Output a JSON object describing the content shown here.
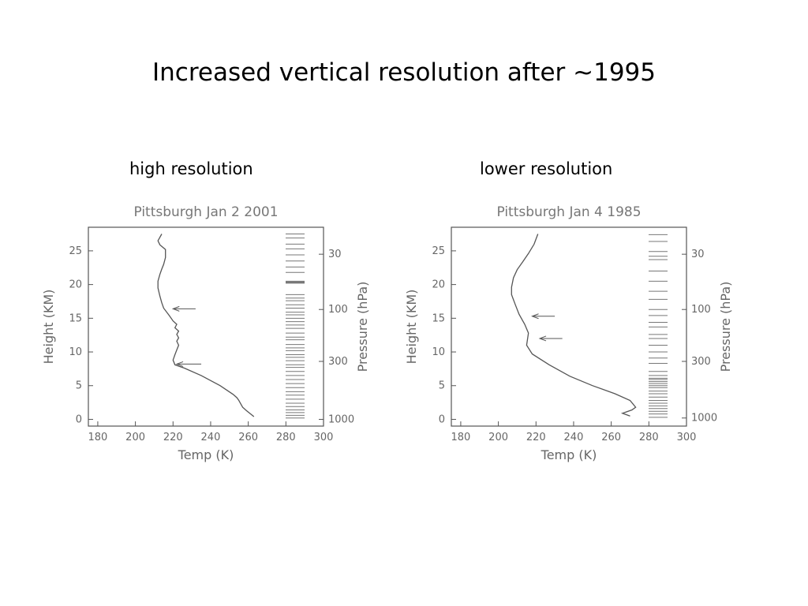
{
  "slide": {
    "title": "Increased vertical resolution after ~1995",
    "left_heading": "high resolution",
    "right_heading": "lower resolution"
  },
  "colors": {
    "profile_line": "#555555",
    "frame": "#555555",
    "text": "#666666"
  },
  "chart_data": [
    {
      "type": "line",
      "title": "Pittsburgh Jan 2 2001",
      "xlabel": "Temp (K)",
      "ylabel": "Height (KM)",
      "y2label": "Pressure (hPa)",
      "xlim": [
        175,
        300
      ],
      "ylim": [
        -1,
        28.5
      ],
      "xticks": [
        180,
        200,
        220,
        240,
        260,
        280,
        300
      ],
      "yticks": [
        0,
        5,
        10,
        15,
        20,
        25
      ],
      "y2ticks": [
        {
          "label": "30",
          "height": 24.5
        },
        {
          "label": "100",
          "height": 16.3
        },
        {
          "label": "300",
          "height": 8.6
        },
        {
          "label": "1000",
          "height": 0.0
        }
      ],
      "series": [
        {
          "x": [
            263,
            259,
            257,
            256,
            255,
            254,
            252,
            245,
            235,
            226,
            221,
            220,
            221,
            222,
            223,
            222,
            223,
            222,
            223,
            221,
            222,
            220,
            218,
            215,
            214,
            213,
            212,
            212,
            213,
            214,
            215,
            216,
            216,
            213,
            212,
            214
          ],
          "y": [
            0.4,
            1.3,
            1.8,
            2.3,
            2.8,
            3.2,
            3.7,
            5.0,
            6.5,
            7.6,
            8.1,
            8.8,
            9.6,
            10.3,
            11.0,
            11.6,
            12.1,
            12.6,
            13.1,
            13.6,
            14.1,
            14.6,
            15.4,
            16.5,
            17.3,
            18.3,
            19.5,
            20.5,
            21.5,
            22.3,
            23.0,
            24.0,
            25.2,
            25.9,
            26.5,
            27.5
          ]
        }
      ],
      "annotations": [
        {
          "type": "arrow",
          "x_start": 232,
          "x_end": 220,
          "y": 16.4
        },
        {
          "type": "arrow",
          "x_start": 235,
          "x_end": 222,
          "y": 8.2
        }
      ],
      "level_heights": [
        27.5,
        26.9,
        26.0,
        25.3,
        24.4,
        23.5,
        22.6,
        21.8,
        20.5,
        20.4,
        20.3,
        20.2,
        18.5,
        18.0,
        17.6,
        17.0,
        16.5,
        15.9,
        15.5,
        15.0,
        14.5,
        14.0,
        13.5,
        12.8,
        12.2,
        11.8,
        11.1,
        10.6,
        10.2,
        9.6,
        9.2,
        8.7,
        8.1,
        7.7,
        7.1,
        6.5,
        5.9,
        5.3,
        4.7,
        4.1,
        3.6,
        3.0,
        2.4,
        1.9,
        1.4,
        1.0,
        0.6,
        0.2
      ]
    },
    {
      "type": "line",
      "title": "Pittsburgh Jan 4 1985",
      "xlabel": "Temp (K)",
      "ylabel": "Height (KM)",
      "y2label": "Pressure (hPa)",
      "xlim": [
        175,
        300
      ],
      "ylim": [
        -1,
        28.5
      ],
      "xticks": [
        180,
        200,
        220,
        240,
        260,
        280,
        300
      ],
      "yticks": [
        0,
        5,
        10,
        15,
        20,
        25
      ],
      "y2ticks": [
        {
          "label": "30",
          "height": 24.5
        },
        {
          "label": "100",
          "height": 16.3
        },
        {
          "label": "300",
          "height": 8.6
        },
        {
          "label": "1000",
          "height": 0.2
        }
      ],
      "series": [
        {
          "x": [
            270,
            266,
            271,
            273,
            270,
            262,
            250,
            238,
            227,
            218,
            215,
            216,
            214,
            211,
            209,
            207,
            207,
            208,
            210,
            213,
            216,
            219,
            221
          ],
          "y": [
            0.5,
            0.9,
            1.4,
            1.8,
            2.8,
            3.8,
            5.0,
            6.4,
            8.1,
            9.7,
            11.0,
            12.8,
            14.1,
            15.6,
            17.0,
            18.5,
            19.6,
            21.0,
            22.2,
            23.4,
            24.6,
            26.0,
            27.5
          ]
        }
      ],
      "annotations": [
        {
          "type": "arrow",
          "x_start": 230,
          "x_end": 218,
          "y": 15.3
        },
        {
          "type": "arrow",
          "x_start": 234,
          "x_end": 222,
          "y": 12.0
        }
      ],
      "level_heights": [
        27.4,
        26.4,
        24.9,
        24.2,
        23.7,
        22.0,
        20.5,
        19.0,
        17.8,
        16.3,
        15.4,
        14.4,
        13.7,
        12.6,
        12.0,
        11.0,
        10.0,
        9.1,
        8.3,
        7.1,
        6.5,
        6.1,
        5.9,
        5.6,
        5.3,
        5.0,
        4.7,
        4.2,
        3.8,
        3.3,
        2.8,
        2.4,
        2.0,
        1.6,
        1.2,
        0.8,
        0.3
      ]
    }
  ]
}
